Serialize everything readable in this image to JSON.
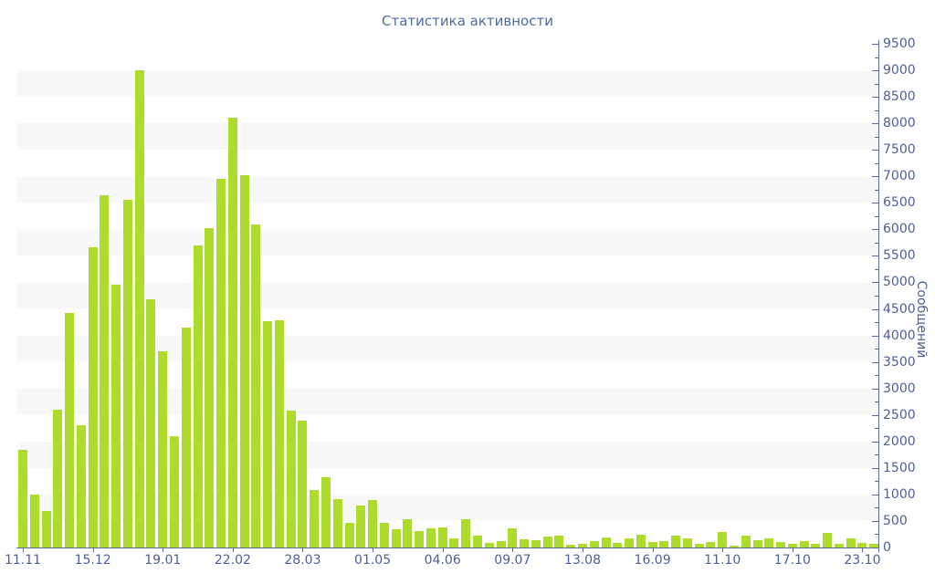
{
  "title": "Статистика активности",
  "chart_data": {
    "type": "bar",
    "title": "Статистика активности",
    "xlabel": "",
    "ylabel": "Сообщений",
    "ylim": [
      0,
      9500
    ],
    "y_tick_step": 500,
    "y_minor_tick_step": 250,
    "grid": "alternating horizontal bands, 500 units each",
    "legend": "none",
    "x_tick_labels": [
      "11.11",
      "15.12",
      "19.01",
      "22.02",
      "28.03",
      "01.05",
      "04.06",
      "09.07",
      "13.08",
      "16.09",
      "11.10",
      "17.10",
      "23.10"
    ],
    "x_tick_bar_index": [
      0,
      6,
      12,
      18,
      24,
      30,
      36,
      42,
      48,
      54,
      60,
      66,
      72
    ],
    "values": [
      1850,
      1000,
      690,
      2600,
      4430,
      2300,
      5670,
      6650,
      4950,
      6550,
      9000,
      4680,
      3700,
      2100,
      4140,
      5690,
      6030,
      6950,
      8110,
      7030,
      6100,
      4260,
      4280,
      2580,
      2400,
      1080,
      1330,
      910,
      470,
      790,
      900,
      460,
      350,
      530,
      310,
      360,
      380,
      170,
      530,
      230,
      90,
      120,
      360,
      160,
      130,
      210,
      230,
      55,
      70,
      120,
      190,
      90,
      170,
      240,
      100,
      120,
      220,
      170,
      70,
      100,
      290,
      35,
      220,
      140,
      170,
      105,
      70,
      120,
      75,
      270,
      70,
      170,
      90,
      65
    ],
    "colors": {
      "bar": "#aedc2d",
      "axis_line": "#5a69a4",
      "axis_label": "#4d5f9b",
      "title": "#4a6da6",
      "band_stripe": "#f8f8f8",
      "background": "#ffffff"
    }
  }
}
